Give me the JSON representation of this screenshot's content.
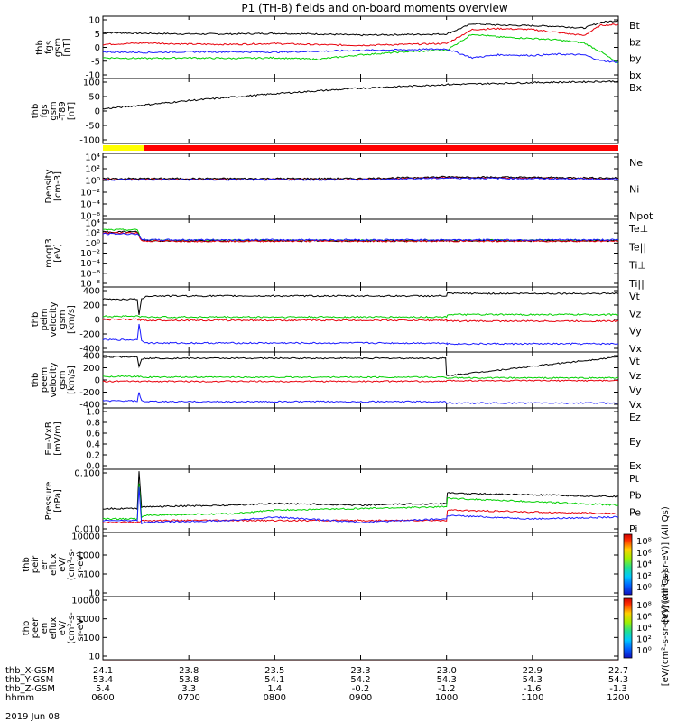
{
  "title": "P1 (TH-B) fields and on-board moments overview",
  "date_label": "2019 Jun 08",
  "colors": {
    "black": "#000000",
    "red": "#e8000b",
    "green": "#00d000",
    "blue": "#1a1aff"
  },
  "chart_data": [
    {
      "id": "fgs_gsm",
      "type": "line",
      "ylabel": [
        "thb",
        "fgs",
        "gsm",
        "[nT]"
      ],
      "yticks": [
        "10",
        "5",
        "0",
        "-5",
        "-10"
      ],
      "ylim": [
        -10,
        11
      ],
      "legend": [
        {
          "name": "Bt",
          "color": "#000000"
        },
        {
          "name": "bz",
          "color": "#e8000b"
        },
        {
          "name": "by",
          "color": "#00d000"
        },
        {
          "name": "bx",
          "color": "#1a1aff"
        }
      ],
      "x": [
        6.0,
        6.5,
        7.0,
        7.5,
        8.0,
        8.5,
        9.0,
        9.5,
        10.0,
        10.3,
        10.6,
        11.0,
        11.3,
        11.6,
        11.8,
        12.0
      ],
      "series": [
        {
          "name": "Bt",
          "values": [
            5.5,
            5.2,
            5.0,
            5.0,
            5.2,
            5.0,
            4.6,
            4.8,
            5.0,
            8.5,
            8.0,
            7.8,
            7.6,
            7.0,
            9.0,
            9.5
          ]
        },
        {
          "name": "bz",
          "values": [
            1.5,
            2.0,
            1.6,
            1.5,
            1.8,
            1.4,
            1.2,
            1.5,
            1.8,
            6.5,
            6.8,
            6.5,
            5.5,
            4.5,
            8.0,
            8.2
          ]
        },
        {
          "name": "by",
          "values": [
            -3.0,
            -3.2,
            -3.0,
            -3.2,
            -3.0,
            -3.5,
            -2.0,
            -1.0,
            -0.5,
            5.0,
            4.0,
            3.5,
            3.0,
            2.0,
            -1.0,
            -5.0
          ]
        },
        {
          "name": "bx",
          "values": [
            -1.0,
            -1.2,
            -1.0,
            -1.0,
            -1.1,
            -0.8,
            -0.5,
            -0.3,
            0.0,
            -3.0,
            -2.0,
            -2.2,
            -1.8,
            -2.0,
            -4.0,
            -4.5
          ]
        }
      ]
    },
    {
      "id": "fgs_gsm_t89",
      "type": "line",
      "ylabel": [
        "thb",
        "fgs",
        "gsm",
        "-T89",
        "[nT]"
      ],
      "yticks": [
        "100",
        "50",
        "0",
        "-50",
        "-100"
      ],
      "ylim": [
        -125,
        110
      ],
      "legend": [
        {
          "name": "Bx",
          "color": "#000000"
        }
      ],
      "x": [
        6.0,
        7.0,
        8.0,
        9.0,
        10.0,
        11.0,
        12.0
      ],
      "series": [
        {
          "name": "Bx",
          "values": [
            0,
            30,
            55,
            75,
            88,
            95,
            100
          ]
        }
      ]
    },
    {
      "id": "density",
      "type": "line",
      "ylabel": [
        "Density",
        "[cm-3]"
      ],
      "yticks": [
        "10⁴",
        "10²",
        "10⁰",
        "10⁻²",
        "10⁻⁴",
        "10⁻⁶"
      ],
      "ylim": [
        -7,
        4.5
      ],
      "log": true,
      "legend": [
        {
          "name": "Ne",
          "color": "#e8000b"
        },
        {
          "name": "Ni",
          "color": "#000000"
        },
        {
          "name": "Npot",
          "color": "#1a1aff"
        }
      ],
      "x": [
        6.0,
        7.0,
        8.0,
        9.0,
        10.0,
        11.0,
        12.0
      ],
      "series": [
        {
          "name": "Ne",
          "values": [
            0.0,
            0.0,
            0.0,
            0.0,
            0.3,
            0.2,
            0.1
          ]
        },
        {
          "name": "Ni",
          "values": [
            0.1,
            0.1,
            0.1,
            0.1,
            0.4,
            0.3,
            0.2
          ]
        },
        {
          "name": "Npot",
          "values": [
            -0.1,
            -0.1,
            -0.1,
            -0.1,
            0.2,
            0.1,
            0.0
          ]
        }
      ]
    },
    {
      "id": "temperature",
      "type": "line",
      "ylabel": [
        "moqt3",
        "[eV]"
      ],
      "yticks": [
        "10⁴",
        "10²",
        "10⁰",
        "10⁻²",
        "10⁻⁴",
        "10⁻⁶",
        "10⁻⁸"
      ],
      "ylim": [
        -9,
        4.5
      ],
      "log": true,
      "legend": [
        {
          "name": "Te⊥",
          "color": "#e8000b"
        },
        {
          "name": "Te||",
          "color": "#000000"
        },
        {
          "name": "Ti⊥",
          "color": "#1a1aff"
        },
        {
          "name": "Ti||",
          "color": "#00d000"
        }
      ],
      "x": [
        6.0,
        6.4,
        6.45,
        6.6,
        8.0,
        10.0,
        12.0
      ],
      "series": [
        {
          "name": "Ti||",
          "values": [
            2.4,
            2.4,
            0.4,
            0.3,
            0.3,
            0.3,
            0.3
          ]
        },
        {
          "name": "Te||",
          "values": [
            2.0,
            2.0,
            0.3,
            0.2,
            0.2,
            0.2,
            0.2
          ]
        },
        {
          "name": "Te⊥",
          "values": [
            1.8,
            1.8,
            0.2,
            0.15,
            0.15,
            0.15,
            0.15
          ]
        },
        {
          "name": "Ti⊥",
          "values": [
            1.6,
            1.6,
            0.5,
            0.4,
            0.4,
            0.4,
            0.4
          ]
        }
      ]
    },
    {
      "id": "peim_velocity",
      "type": "line",
      "ylabel": [
        "thb",
        "peim",
        "velocity",
        "gsm",
        "[km/s]"
      ],
      "yticks": [
        "400",
        "200",
        "0",
        "-200",
        "-400"
      ],
      "ylim": [
        -400,
        400
      ],
      "legend": [
        {
          "name": "Vt",
          "color": "#000000"
        },
        {
          "name": "Vz",
          "color": "#e8000b"
        },
        {
          "name": "Vy",
          "color": "#00d000"
        },
        {
          "name": "Vx",
          "color": "#1a1aff"
        }
      ],
      "x": [
        6.0,
        6.4,
        6.42,
        6.45,
        6.5,
        8.0,
        10.0,
        10.01,
        12.0
      ],
      "series": [
        {
          "name": "Vt",
          "values": [
            250,
            250,
            50,
            250,
            290,
            290,
            290,
            320,
            320
          ]
        },
        {
          "name": "Vz",
          "values": [
            0,
            0,
            0,
            -10,
            -10,
            -10,
            -10,
            -20,
            -20
          ]
        },
        {
          "name": "Vy",
          "values": [
            40,
            40,
            40,
            30,
            30,
            30,
            30,
            60,
            60
          ]
        },
        {
          "name": "Vx",
          "values": [
            -250,
            -250,
            -50,
            -250,
            -290,
            -290,
            -290,
            -300,
            -300
          ]
        }
      ]
    },
    {
      "id": "peem_velocity",
      "type": "line",
      "ylabel": [
        "thb",
        "peem",
        "velocity",
        "gsm",
        "[km/s]"
      ],
      "yticks": [
        "400",
        "200",
        "0",
        "-200",
        "-400"
      ],
      "ylim": [
        -400,
        400
      ],
      "legend": [
        {
          "name": "Vt",
          "color": "#000000"
        },
        {
          "name": "Vz",
          "color": "#e8000b"
        },
        {
          "name": "Vy",
          "color": "#00d000"
        },
        {
          "name": "Vx",
          "color": "#1a1aff"
        }
      ],
      "x": [
        6.0,
        6.4,
        6.42,
        6.45,
        6.5,
        8.0,
        9.99,
        10.0,
        12.0
      ],
      "series": [
        {
          "name": "Vt",
          "values": [
            330,
            330,
            200,
            300,
            310,
            310,
            310,
            60,
            330
          ]
        },
        {
          "name": "Vz",
          "values": [
            -20,
            -20,
            -20,
            -20,
            -20,
            -20,
            -20,
            -10,
            -10
          ]
        },
        {
          "name": "Vy",
          "values": [
            50,
            50,
            50,
            40,
            40,
            40,
            40,
            30,
            30
          ]
        },
        {
          "name": "Vx",
          "values": [
            -300,
            -300,
            -180,
            -300,
            -310,
            -310,
            -310,
            -330,
            -330
          ]
        }
      ]
    },
    {
      "id": "efield",
      "type": "line",
      "ylabel": [
        "E=-VxB",
        "[mV/m]"
      ],
      "yticks": [
        "1.0",
        "0.8",
        "0.6",
        "0.4",
        "0.2",
        "0.0"
      ],
      "ylim": [
        0,
        1.0
      ],
      "legend": [
        {
          "name": "Ez",
          "color": "#e8000b"
        },
        {
          "name": "Ey",
          "color": "#00d000"
        },
        {
          "name": "Ex",
          "color": "#1a1aff"
        }
      ],
      "series": []
    },
    {
      "id": "pressure",
      "type": "line",
      "ylabel": [
        "Pressure",
        "[nPa]"
      ],
      "yticks": [
        "0.100",
        "0.010"
      ],
      "ylim": [
        -2.35,
        -0.5
      ],
      "log": true,
      "legend": [
        {
          "name": "Pt",
          "color": "#000000"
        },
        {
          "name": "Pb",
          "color": "#e8000b"
        },
        {
          "name": "Pe",
          "color": "#00d000"
        },
        {
          "name": "Pi",
          "color": "#1a1aff"
        }
      ],
      "x": [
        6.0,
        6.4,
        6.42,
        6.45,
        6.5,
        7.5,
        8.0,
        9.0,
        10.0,
        10.01,
        11.0,
        12.0
      ],
      "series": [
        {
          "name": "Pt",
          "values": [
            -1.65,
            -1.65,
            -0.55,
            -1.6,
            -1.6,
            -1.55,
            -1.5,
            -1.55,
            -1.5,
            -1.2,
            -1.25,
            -1.3
          ]
        },
        {
          "name": "Pb",
          "values": [
            -2.05,
            -2.05,
            -2.05,
            -2.0,
            -2.0,
            -2.0,
            -2.0,
            -2.0,
            -2.0,
            -1.7,
            -1.75,
            -1.8
          ]
        },
        {
          "name": "Pe",
          "values": [
            -1.95,
            -1.95,
            -0.9,
            -1.9,
            -1.85,
            -1.8,
            -1.7,
            -1.65,
            -1.6,
            -1.35,
            -1.45,
            -1.55
          ]
        },
        {
          "name": "Pi",
          "values": [
            -2.0,
            -2.0,
            -1.0,
            -2.1,
            -2.05,
            -2.0,
            -1.9,
            -2.05,
            -1.95,
            -1.85,
            -1.95,
            -1.9
          ]
        }
      ]
    },
    {
      "id": "peir_en_eflux",
      "type": "heatmap",
      "ylabel": [
        "thb",
        "peir",
        "en",
        "eflux",
        "eV/",
        "(cm²-s-",
        "sr-eV)"
      ],
      "yticks": [
        "10000",
        "1000",
        "100",
        "10"
      ],
      "ylim": [
        0.7,
        4.4
      ],
      "colorbar": {
        "ticks": [
          "10⁸",
          "10⁶",
          "10⁴",
          "10²",
          "10⁰"
        ],
        "label": "[eV/(cm²-s-sr-eV)] (All Qs)"
      }
    },
    {
      "id": "peer_en_eflux",
      "type": "heatmap",
      "ylabel": [
        "thb",
        "peer",
        "en",
        "eflux",
        "eV/",
        "(cm²-s-",
        "sr-eV)"
      ],
      "yticks": [
        "10000",
        "1000",
        "100",
        "10"
      ],
      "ylim": [
        0.7,
        4.4
      ],
      "colorbar": {
        "ticks": [
          "10⁸",
          "10⁶",
          "10⁴",
          "10²",
          "10⁰"
        ],
        "label": "[eV/(cm²-s-sr-eV)] (All Qs)"
      }
    }
  ],
  "xaxis": {
    "row_labels": [
      "thb_X-GSM",
      "thb_Y-GSM",
      "thb_Z-GSM",
      "hhmm"
    ],
    "columns": [
      {
        "x": 6.0,
        "values": [
          "24.1",
          "53.4",
          "5.4",
          "0600"
        ]
      },
      {
        "x": 7.0,
        "values": [
          "23.8",
          "53.8",
          "3.3",
          "0700"
        ]
      },
      {
        "x": 8.0,
        "values": [
          "23.5",
          "54.1",
          "1.4",
          "0800"
        ]
      },
      {
        "x": 9.0,
        "values": [
          "23.3",
          "54.2",
          "-0.2",
          "0900"
        ]
      },
      {
        "x": 10.0,
        "values": [
          "23.0",
          "54.3",
          "-1.2",
          "1000"
        ]
      },
      {
        "x": 11.0,
        "values": [
          "22.9",
          "54.3",
          "-1.6",
          "1100"
        ]
      },
      {
        "x": 12.0,
        "values": [
          "22.7",
          "54.3",
          "-1.3",
          "1200"
        ]
      }
    ]
  }
}
